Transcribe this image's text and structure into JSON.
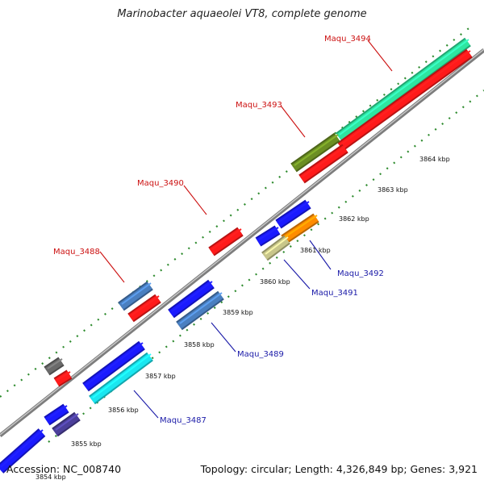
{
  "title": "Marinobacter aquaeolei VT8, complete genome",
  "footer": {
    "accession": "Accession: NC_008740",
    "summary": "Topology: circular; Length: 4,326,849 bp; Genes: 3,921"
  },
  "colors": {
    "backbone": "#9a9a9a",
    "dots": "#2e8b2e",
    "label_top": "#cc1111",
    "label_bottom": "#1a1aa8"
  },
  "kbp_labels": [
    "3854 kbp",
    "3855 kbp",
    "3856 kbp",
    "3857 kbp",
    "3858 kbp",
    "3859 kbp",
    "3860 kbp",
    "3861 kbp",
    "3862 kbp",
    "3863 kbp",
    "3864 kbp"
  ],
  "gene_labels": [
    {
      "id": "top-3494",
      "text": "Maqu_3494",
      "strand": "top"
    },
    {
      "id": "top-3493",
      "text": "Maqu_3493",
      "strand": "top"
    },
    {
      "id": "top-3490",
      "text": "Maqu_3490",
      "strand": "top"
    },
    {
      "id": "top-3488",
      "text": "Maqu_3488",
      "strand": "top"
    },
    {
      "id": "bot-3492",
      "text": "Maqu_3492",
      "strand": "bottom"
    },
    {
      "id": "bot-3491",
      "text": "Maqu_3491",
      "strand": "bottom"
    },
    {
      "id": "bot-3489",
      "text": "Maqu_3489",
      "strand": "bottom"
    },
    {
      "id": "bot-3487",
      "text": "Maqu_3487",
      "strand": "bottom"
    }
  ]
}
